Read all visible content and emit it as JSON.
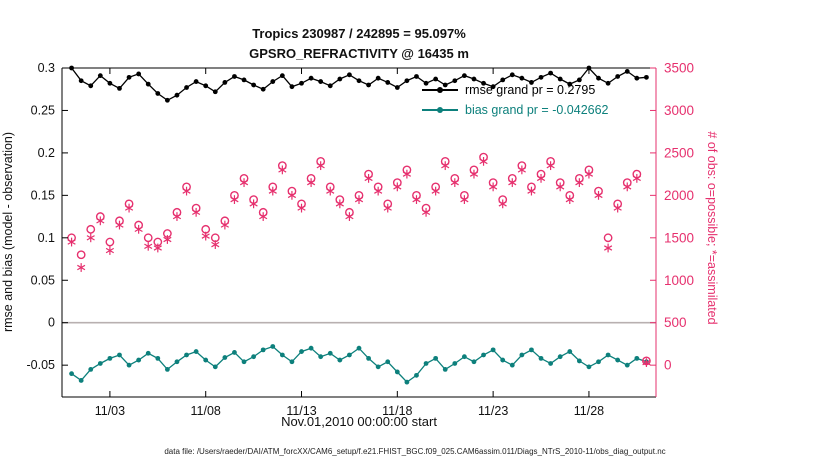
{
  "figure": {
    "title_line1": "Tropics 230987 / 242895 = 95.097%",
    "title_line2": "GPSRO_REFRACTIVITY @ 16435 m",
    "xlabel": "Nov.01,2010 00:00:00 start",
    "ylabel_left": "rmse and bias (model - observation)",
    "ylabel_right": "# of obs: o=possible; *=assimilated",
    "footer": "data file: /Users/raeder/DAI/ATM_forcXX/CAM6_setup/f.e21.FHIST_BGC.f09_025.CAM6assim.011/Diags_NTrS_2010-11/obs_diag_output.nc",
    "legend": [
      {
        "label": "rmse grand pr = 0.2795",
        "line_color": "#000000",
        "text_color": "#000000"
      },
      {
        "label": "bias grand pr = -0.042662",
        "line_color": "#0d807c",
        "text_color": "#0d807c"
      }
    ],
    "colors": {
      "rmse": "#000000",
      "bias": "#0d807c",
      "obs": "#e6306e",
      "zero_line": "#b8b0b0"
    }
  },
  "chart_data": {
    "type": "line",
    "title": "Tropics 230987 / 242895 = 95.097% | GPSRO_REFRACTIVITY @ 16435 m",
    "xlabel": "Nov.01,2010 00:00:00 start",
    "ylabel_left": "rmse and bias (model - observation)",
    "ylabel_right": "# of obs: o=possible; *=assimilated",
    "grid": "off",
    "legend_position": "north",
    "xlim": [
      0.5,
      31.5
    ],
    "ylim_left": [
      -0.0875,
      0.3
    ],
    "ylim_right": [
      -375,
      3500
    ],
    "zero_line_left": 0,
    "x_ticks": [
      {
        "day": 3,
        "label": "11/03"
      },
      {
        "day": 8,
        "label": "11/08"
      },
      {
        "day": 13,
        "label": "11/13"
      },
      {
        "day": 18,
        "label": "11/18"
      },
      {
        "day": 23,
        "label": "11/23"
      },
      {
        "day": 28,
        "label": "11/28"
      }
    ],
    "left_ticks": [
      {
        "v": 0.3,
        "label": "0.3"
      },
      {
        "v": 0.25,
        "label": "0.25"
      },
      {
        "v": 0.2,
        "label": "0.2"
      },
      {
        "v": 0.15,
        "label": "0.15"
      },
      {
        "v": 0.1,
        "label": "0.1"
      },
      {
        "v": 0.05,
        "label": "0.05"
      },
      {
        "v": 0,
        "label": "0"
      },
      {
        "v": -0.05,
        "label": "-0.05"
      }
    ],
    "right_ticks": [
      {
        "v": 3500,
        "label": "3500"
      },
      {
        "v": 3000,
        "label": "3000"
      },
      {
        "v": 2500,
        "label": "2500"
      },
      {
        "v": 2000,
        "label": "2000"
      },
      {
        "v": 1500,
        "label": "1500"
      },
      {
        "v": 1000,
        "label": "1000"
      },
      {
        "v": 500,
        "label": "500"
      },
      {
        "v": 0,
        "label": "0"
      }
    ],
    "x_days": [
      1,
      1.5,
      2,
      2.5,
      3,
      3.5,
      4,
      4.5,
      5,
      5.5,
      6,
      6.5,
      7,
      7.5,
      8,
      8.5,
      9,
      9.5,
      10,
      10.5,
      11,
      11.5,
      12,
      12.5,
      13,
      13.5,
      14,
      14.5,
      15,
      15.5,
      16,
      16.5,
      17,
      17.5,
      18,
      18.5,
      19,
      19.5,
      20,
      20.5,
      21,
      21.5,
      22,
      22.5,
      23,
      23.5,
      24,
      24.5,
      25,
      25.5,
      26,
      26.5,
      27,
      27.5,
      28,
      28.5,
      29,
      29.5,
      30,
      30.5,
      31
    ],
    "series": [
      {
        "name": "rmse",
        "axis": "left",
        "style": "line-dot",
        "color": "#000000",
        "grand_value": 0.2795,
        "values": [
          0.3,
          0.285,
          0.279,
          0.291,
          0.282,
          0.276,
          0.289,
          0.293,
          0.281,
          0.27,
          0.262,
          0.268,
          0.277,
          0.284,
          0.279,
          0.272,
          0.283,
          0.29,
          0.286,
          0.28,
          0.275,
          0.284,
          0.291,
          0.278,
          0.282,
          0.288,
          0.284,
          0.279,
          0.287,
          0.292,
          0.285,
          0.28,
          0.288,
          0.283,
          0.277,
          0.285,
          0.29,
          0.282,
          0.287,
          0.28,
          0.285,
          0.291,
          0.287,
          0.282,
          0.278,
          0.286,
          0.292,
          0.288,
          0.283,
          0.289,
          0.294,
          0.287,
          0.281,
          0.286,
          0.3,
          0.288,
          0.282,
          0.29,
          0.296,
          0.288,
          0.289
        ]
      },
      {
        "name": "bias",
        "axis": "left",
        "style": "line-dot",
        "color": "#0d807c",
        "grand_value": -0.042662,
        "values": [
          -0.06,
          -0.068,
          -0.055,
          -0.048,
          -0.042,
          -0.038,
          -0.05,
          -0.044,
          -0.036,
          -0.042,
          -0.055,
          -0.046,
          -0.038,
          -0.034,
          -0.044,
          -0.052,
          -0.041,
          -0.035,
          -0.046,
          -0.04,
          -0.032,
          -0.028,
          -0.038,
          -0.046,
          -0.034,
          -0.03,
          -0.04,
          -0.036,
          -0.044,
          -0.038,
          -0.03,
          -0.042,
          -0.052,
          -0.046,
          -0.058,
          -0.07,
          -0.062,
          -0.048,
          -0.042,
          -0.055,
          -0.048,
          -0.04,
          -0.046,
          -0.038,
          -0.032,
          -0.044,
          -0.05,
          -0.038,
          -0.032,
          -0.042,
          -0.048,
          -0.04,
          -0.034,
          -0.045,
          -0.052,
          -0.046,
          -0.038,
          -0.044,
          -0.05,
          -0.042,
          -0.046
        ]
      },
      {
        "name": "possible",
        "axis": "right",
        "style": "circle",
        "color": "#e6306e",
        "values": [
          1500,
          1300,
          1600,
          1750,
          1450,
          1700,
          1900,
          1650,
          1500,
          1450,
          1550,
          1800,
          2100,
          1850,
          1600,
          1500,
          1700,
          2000,
          2200,
          1950,
          1800,
          2100,
          2350,
          2050,
          1900,
          2200,
          2400,
          2100,
          1950,
          1800,
          2000,
          2250,
          2100,
          1900,
          2150,
          2300,
          2000,
          1850,
          2100,
          2400,
          2200,
          2000,
          2300,
          2450,
          2150,
          1950,
          2200,
          2350,
          2100,
          2250,
          2400,
          2150,
          2000,
          2200,
          2300,
          2050,
          1500,
          1900,
          2150,
          2250,
          50
        ]
      },
      {
        "name": "assimilated",
        "axis": "right",
        "style": "asterisk",
        "color": "#e6306e",
        "values": [
          1450,
          1150,
          1500,
          1700,
          1350,
          1650,
          1850,
          1600,
          1400,
          1380,
          1480,
          1750,
          2050,
          1800,
          1520,
          1420,
          1650,
          1950,
          2150,
          1900,
          1750,
          2050,
          2300,
          2000,
          1850,
          2150,
          2350,
          2050,
          1900,
          1750,
          1950,
          2200,
          2050,
          1850,
          2100,
          2250,
          1950,
          1800,
          2050,
          2350,
          2150,
          1950,
          2250,
          2400,
          2100,
          1900,
          2150,
          2300,
          2050,
          2200,
          2350,
          2100,
          1950,
          2150,
          2250,
          2000,
          1380,
          1850,
          2100,
          2200,
          30
        ]
      }
    ]
  }
}
